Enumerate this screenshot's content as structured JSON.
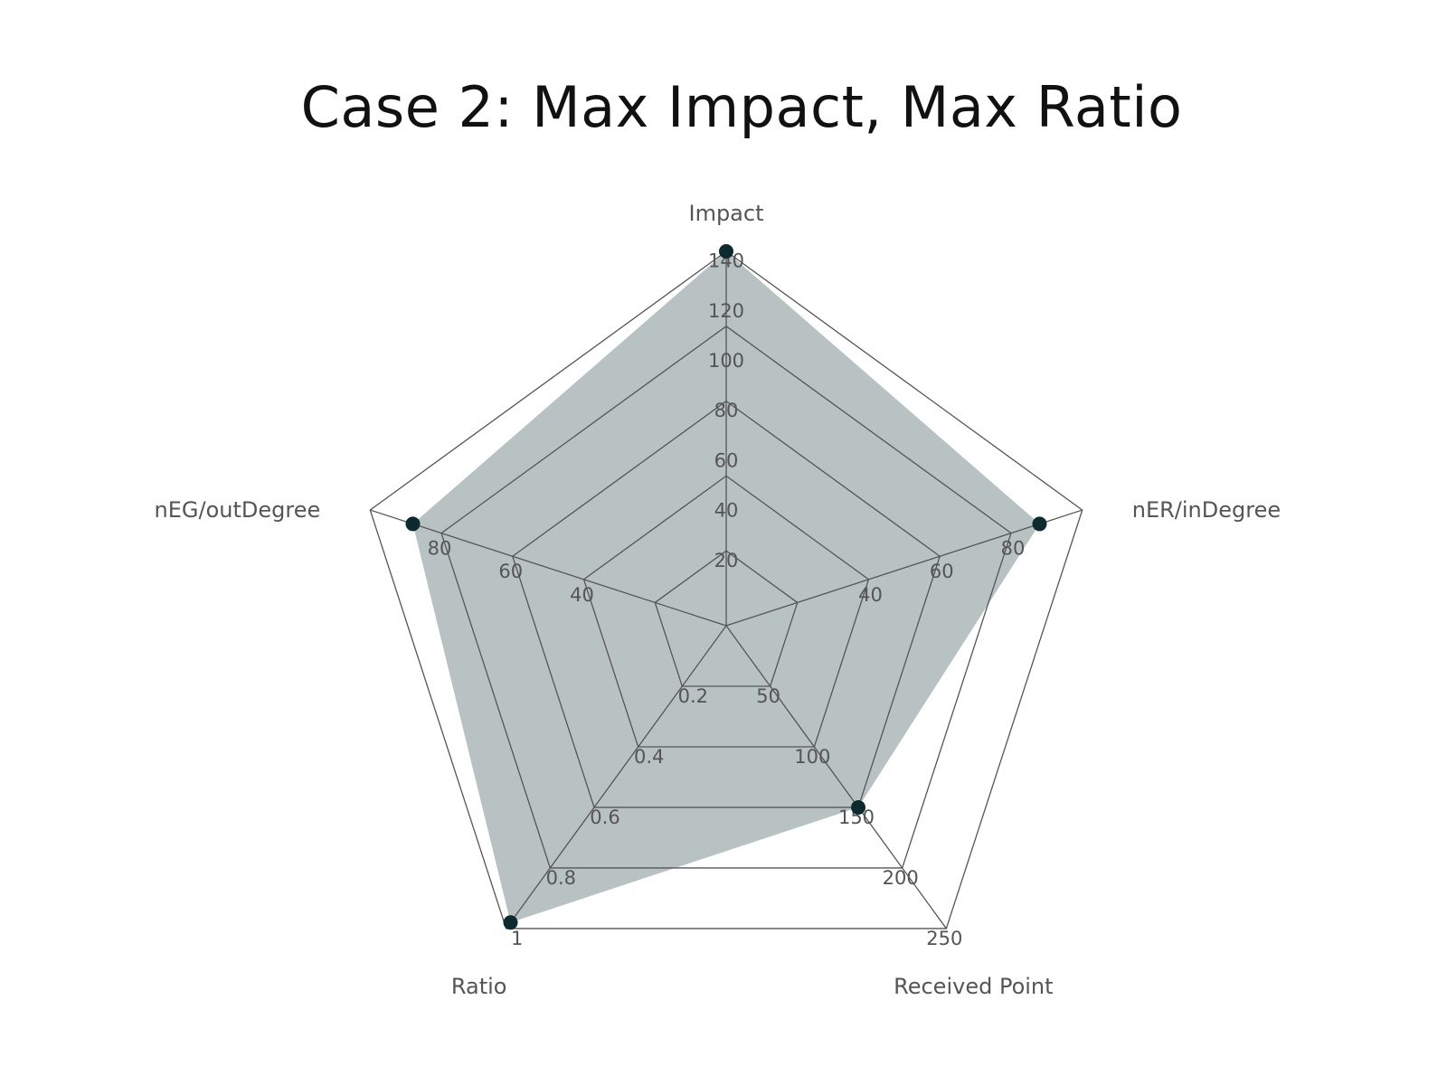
{
  "chart_data": {
    "type": "radar",
    "title": "Case 2: Max Impact, Max Ratio",
    "axes": [
      {
        "name": "Impact",
        "max": 150,
        "ticks": [
          20,
          40,
          60,
          80,
          100,
          120,
          140
        ],
        "tick_labels": [
          "20",
          "40",
          "60",
          "80",
          "100",
          "120",
          "140"
        ]
      },
      {
        "name": "nER/inDegree",
        "max": 100,
        "ticks": [
          40,
          60,
          80
        ],
        "tick_labels": [
          "40",
          "60",
          "80"
        ]
      },
      {
        "name": "Received Point",
        "max": 250,
        "ticks": [
          50,
          100,
          150,
          200,
          250
        ],
        "tick_labels": [
          "50",
          "100",
          "150",
          "200",
          "250"
        ]
      },
      {
        "name": "Ratio",
        "max": 1,
        "ticks": [
          0.2,
          0.4,
          0.6,
          0.8,
          1
        ],
        "tick_labels": [
          "0.2",
          "0.4",
          "0.6",
          "0.8",
          "1"
        ]
      },
      {
        "name": "nEG/outDegree",
        "max": 100,
        "ticks": [
          40,
          60,
          80
        ],
        "tick_labels": [
          "40",
          "60",
          "80"
        ]
      }
    ],
    "grid_levels": [
      0.2,
      0.4,
      0.6,
      0.8,
      1.0
    ],
    "series": [
      {
        "name": "Case 2",
        "values": [
          150,
          88,
          150,
          0.98,
          88
        ]
      }
    ],
    "colors": {
      "fill": "#b8c2c2",
      "marker": "#0d2b2e",
      "grid": "#555555",
      "text": "#555555"
    }
  }
}
